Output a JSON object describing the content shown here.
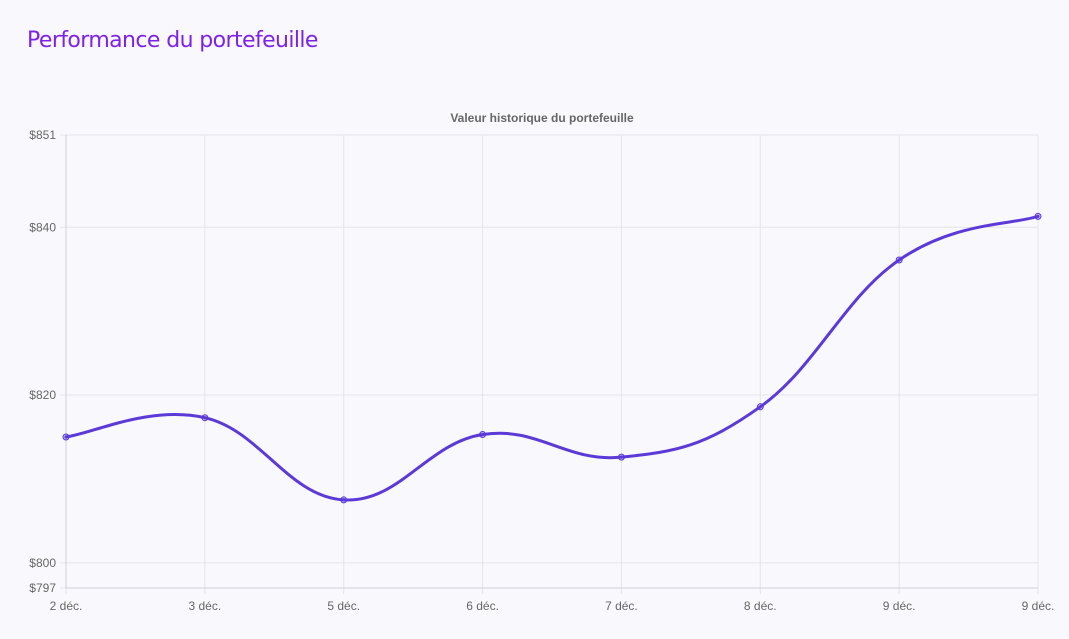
{
  "header": {
    "title": "Performance du portefeuille"
  },
  "colors": {
    "title": "#7e22ea",
    "line": "#5b3ad8",
    "grid": "#e4e4ea",
    "axis_text": "#666666"
  },
  "chart_data": {
    "type": "line",
    "title": "Valeur historique du portefeuille",
    "xlabel": "",
    "ylabel": "",
    "categories": [
      "2 déc.",
      "3 déc.",
      "5 déc.",
      "6 déc.",
      "7 déc.",
      "8 déc.",
      "9 déc.",
      "9 déc."
    ],
    "series": [
      {
        "values": [
          815.0,
          817.3,
          807.5,
          815.3,
          812.6,
          818.6,
          836.1,
          841.3
        ]
      }
    ],
    "y_ticks": [
      797,
      800,
      820,
      840,
      851
    ],
    "y_tick_labels": [
      "$797",
      "$800",
      "$820",
      "$840",
      "$851"
    ],
    "ylim": [
      797,
      851
    ],
    "grid": true,
    "legend": "none",
    "smooth": true
  }
}
